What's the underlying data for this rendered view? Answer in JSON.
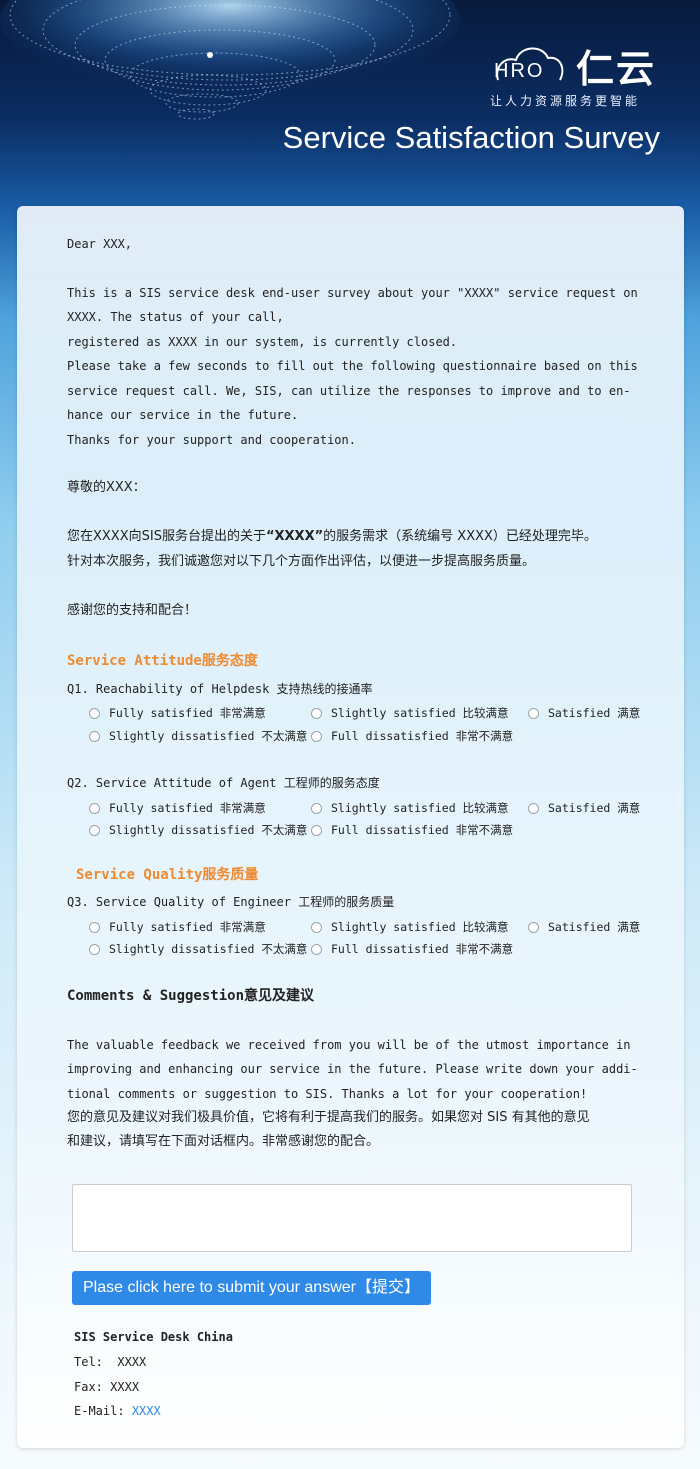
{
  "header": {
    "logo_hro": "HRO",
    "logo_cn": "仁云",
    "logo_tagline": "让人力资源服务更智能",
    "title": "Service Satisfaction Survey"
  },
  "intro_en": {
    "greeting": "Dear XXX,",
    "line1": "This is a SIS service desk end-user survey about your \"XXXX\" service request on",
    "line2": "XXXX. The status of your call,",
    "line3": "registered as XXXX in our system, is currently closed.",
    "line4": "Please take a few seconds to fill out the following questionnaire based on this",
    "line5": "service request call. We, SIS, can utilize the responses to improve and to en-",
    "line6": "hance our service in the future.",
    "line7": "Thanks for your support and cooperation."
  },
  "intro_cn": {
    "greeting": "尊敬的XXX：",
    "line1_a": "您在XXXX向SIS服务台提出的关于",
    "line1_b": "“XXXX”",
    "line1_c": "的服务需求（系统编号 XXXX）已经处理完毕。",
    "line2": "针对本次服务，我们诚邀您对以下几个方面作出评估，以便进一步提高服务质量。",
    "thanks": "感谢您的支持和配合！"
  },
  "sections": {
    "attitude": "Service Attitude服务态度",
    "quality": "Service Quality服务质量"
  },
  "questions": {
    "q1": "Q1. Reachability of Helpdesk 支持热线的接通率",
    "q2": "Q2. Service Attitude of Agent 工程师的服务态度",
    "q3": "Q3. Service Quality of Engineer 工程师的服务质量"
  },
  "options": {
    "o1": "Fully satisfied 非常满意",
    "o2": "Slightly satisfied 比较满意",
    "o3": "Satisfied 满意",
    "o4": "Slightly dissatisfied 不太满意",
    "o5": "Full dissatisfied 非常不满意"
  },
  "comments": {
    "title": "Comments & Suggestion意见及建议",
    "en1": "The valuable feedback we received from you will be of the utmost importance in",
    "en2": "improving and enhancing our service in the future. Please write down your addi-",
    "en3": "tional comments or suggestion to SIS. Thanks a lot for your cooperation!",
    "cn1": "您的意见及建议对我们极具价值，它将有利于提高我们的服务。如果您对 SIS 有其他的意见",
    "cn2": "和建议，请填写在下面对话框内。非常感谢您的配合。",
    "textarea_value": ""
  },
  "submit_label": "Plase click here to submit your answer【提交】",
  "footer": {
    "org": "SIS Service Desk China",
    "tel_label": "Tel:",
    "tel_value": "XXXX",
    "fax_label": "Fax:",
    "fax_value": "XXXX",
    "email_label": "E-Mail:",
    "email_value": "XXXX"
  },
  "colors": {
    "accent_orange": "#f08a30",
    "submit_blue": "#2f89e6",
    "header_dark": "#071a3c"
  }
}
